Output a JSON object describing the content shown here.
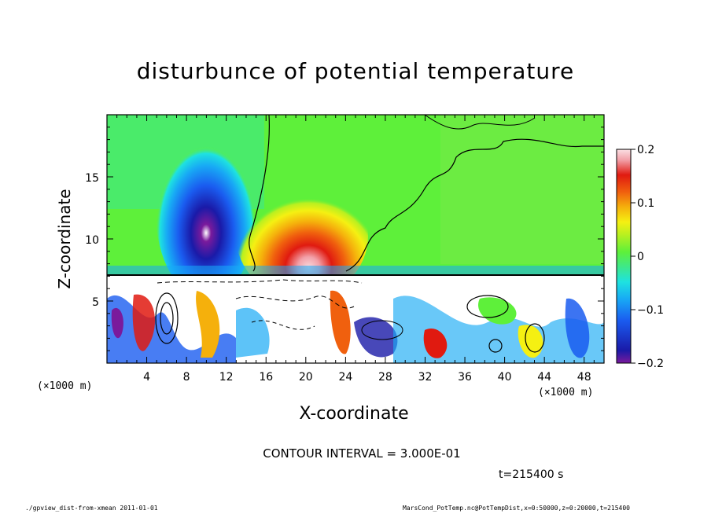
{
  "chart_data": {
    "type": "heatmap",
    "title": "disturbunce of potential temperature",
    "xlabel": "X-coordinate",
    "ylabel": "Z-coordinate",
    "x_unit": "(×1000 m)",
    "z_unit": "(×1000 m)",
    "xlim": [
      0,
      50
    ],
    "ylim": [
      0,
      20
    ],
    "x_ticks": [
      "4",
      "8",
      "12",
      "16",
      "20",
      "24",
      "28",
      "32",
      "36",
      "40",
      "44",
      "48"
    ],
    "y_ticks": [
      "5",
      "10",
      "15"
    ],
    "colorbar": {
      "range": [
        -0.2,
        0.2
      ],
      "tick_labels": [
        "0.2",
        "0.1",
        "0",
        "−0.1",
        "−0.2"
      ],
      "tick_values": [
        0.2,
        0.1,
        0,
        -0.1,
        -0.2
      ]
    },
    "features": [
      {
        "name": "cold anomaly",
        "x": 9.5,
        "z": 10,
        "value": -0.2
      },
      {
        "name": "warm anomaly",
        "x": 20.5,
        "z": 9.5,
        "value": 0.2
      },
      {
        "name": "inversion layer",
        "z": 7,
        "value": 0
      }
    ]
  },
  "annotations": {
    "contour_interval": "CONTOUR INTERVAL = 3.000E-01",
    "time": "t=215400 s"
  },
  "footer": {
    "left": "./gpview_dist-from-xmean  2011-01-01",
    "right": "MarsCond_PotTemp.nc@PotTempDist,x=0:50000,z=0:20000,t=215400"
  },
  "colors": {
    "background": "#ffffff",
    "frame": "#000000",
    "palette": [
      "#7a1a9c",
      "#1a1aa8",
      "#1a5cf0",
      "#18aaf5",
      "#1ee2e0",
      "#3ee88a",
      "#5ef03a",
      "#b8f020",
      "#f5f012",
      "#f5b00c",
      "#f0600e",
      "#e01a10",
      "#f2a0a8",
      "#ffffff"
    ]
  }
}
